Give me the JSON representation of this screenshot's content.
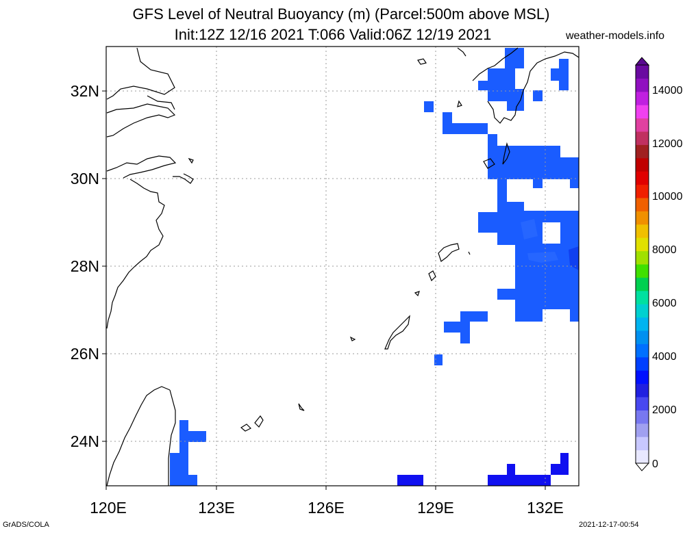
{
  "title_line1": "GFS Level of Neutral Buoyancy (m) (Parcel:500m above MSL)",
  "title_line2": "Init:12Z 12/16 2021 T:066 Valid:06Z 12/19 2021",
  "site": "weather-models.info",
  "footer_left": "GrADS/COLA",
  "footer_right": "2021-12-17-00:54",
  "lon_ticks": [
    "120E",
    "123E",
    "126E",
    "129E",
    "132E"
  ],
  "lat_ticks": [
    "32N",
    "30N",
    "28N",
    "26N",
    "24N"
  ],
  "colorbar_labels": [
    "14000",
    "12000",
    "10000",
    "8000",
    "6000",
    "4000",
    "2000",
    "0"
  ],
  "colorbar_colors": [
    "#e8e8ff",
    "#c8c8ff",
    "#a0a0f0",
    "#7878f0",
    "#4848f0",
    "#2020e0",
    "#0010ff",
    "#0040ff",
    "#0070ff",
    "#0090f0",
    "#00b4f0",
    "#00d0d0",
    "#00e0a0",
    "#00d050",
    "#40e000",
    "#a0e000",
    "#e0e000",
    "#f0c000",
    "#f09000",
    "#f06000",
    "#f02000",
    "#e00000",
    "#c00000",
    "#a02020",
    "#c03060",
    "#e040a0",
    "#f040f0",
    "#c020e0",
    "#9010c0",
    "#6a0aa0"
  ]
}
